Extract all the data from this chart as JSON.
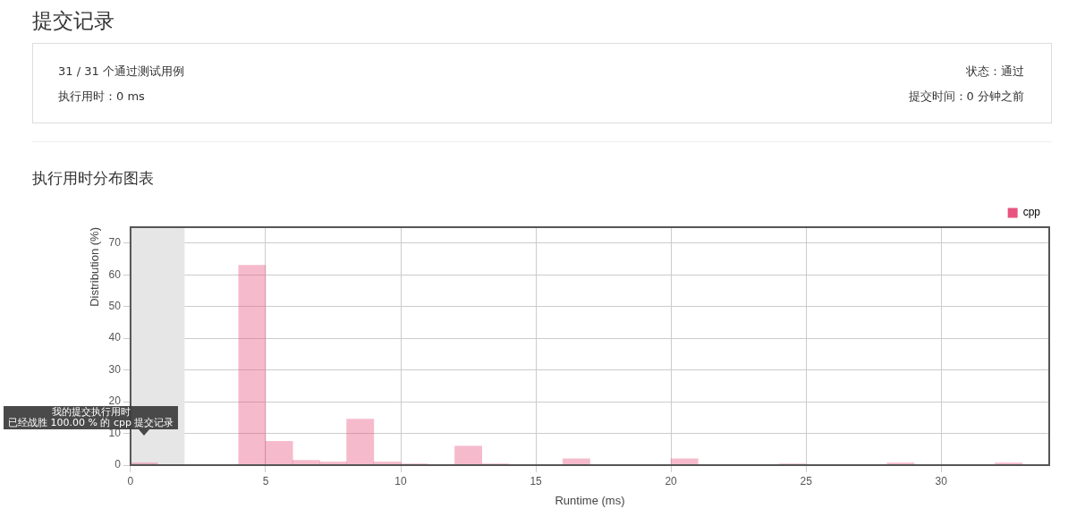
{
  "chart_data": {
    "type": "histogram",
    "title": "提交记录",
    "subtitle": "执行用时分布图表",
    "xlabel": "Runtime (ms)",
    "ylabel": "Distribution (%)",
    "annotations": [
      "31 / 31 个通过测试用例",
      "执行用时：0 ms",
      "状态：通过",
      "提交时间：0 分钟之前",
      "我的提交执行用时",
      "已经战胜 100.00 % 的 cpp 提交记录"
    ],
    "bins": [
      0,
      1,
      2,
      3,
      4,
      5,
      6,
      7,
      8,
      9,
      10,
      11,
      12,
      13,
      14,
      15,
      16,
      17,
      18,
      19,
      20,
      21,
      22,
      23,
      24,
      25,
      26,
      27,
      28,
      29,
      30,
      31,
      32,
      33,
      34
    ],
    "series": [
      {
        "name": "cpp",
        "color": "#e75480",
        "values": [
          0.7,
          0,
          0,
          0,
          63,
          7.5,
          1.5,
          1,
          14.5,
          1,
          0.4,
          0,
          6,
          0.4,
          0,
          0,
          2,
          0,
          0,
          0,
          2,
          0,
          0,
          0,
          0.4,
          0,
          0,
          0,
          0.7,
          0,
          0,
          0,
          0.7,
          0
        ]
      }
    ],
    "bands": [
      {
        "axis": "x",
        "from": 0,
        "to": 2,
        "color": "#e6e6e6"
      }
    ],
    "xlim": [
      0,
      34
    ],
    "ylim": [
      0,
      75
    ],
    "xticks": [
      0,
      5,
      10,
      15,
      20,
      25,
      30
    ],
    "yticks": [
      0,
      10,
      20,
      30,
      40,
      50,
      60,
      70
    ],
    "grid": true,
    "legend": "top right"
  }
}
